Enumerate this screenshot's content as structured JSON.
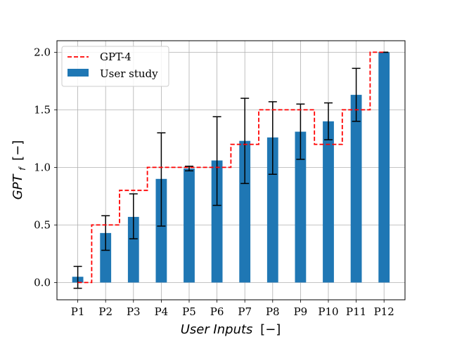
{
  "chart_data": {
    "type": "bar",
    "title": "",
    "xlabel_main": "User Inputs",
    "xlabel_unit": "[−]",
    "ylabel_main": "GPT",
    "ylabel_sub": "f",
    "ylabel_unit": "[−]",
    "categories": [
      "P1",
      "P2",
      "P3",
      "P4",
      "P5",
      "P6",
      "P7",
      "P8",
      "P9",
      "P10",
      "P11",
      "P12"
    ],
    "ylim": [
      -0.15,
      2.1
    ],
    "yticks": [
      0.0,
      0.5,
      1.0,
      1.5,
      2.0
    ],
    "ytick_labels": [
      "0.0",
      "0.5",
      "1.0",
      "1.5",
      "2.0"
    ],
    "grid": true,
    "legend_position": "top-left",
    "series": [
      {
        "name": "GPT-4",
        "kind": "step",
        "color": "#ff0000",
        "style": "dashed",
        "values": [
          0.0,
          0.5,
          0.8,
          1.0,
          1.0,
          1.0,
          1.2,
          1.5,
          1.5,
          1.2,
          1.5,
          2.0
        ]
      },
      {
        "name": "User study",
        "kind": "bar",
        "color": "#1f77b4",
        "values": [
          0.05,
          0.43,
          0.57,
          0.9,
          0.99,
          1.06,
          1.23,
          1.26,
          1.31,
          1.4,
          1.63,
          2.0
        ],
        "err_low": [
          -0.05,
          0.28,
          0.38,
          0.49,
          0.97,
          0.67,
          0.86,
          0.94,
          1.07,
          1.24,
          1.4,
          2.0
        ],
        "err_high": [
          0.14,
          0.58,
          0.77,
          1.3,
          1.01,
          1.44,
          1.6,
          1.57,
          1.55,
          1.56,
          1.86,
          2.0
        ]
      }
    ]
  }
}
